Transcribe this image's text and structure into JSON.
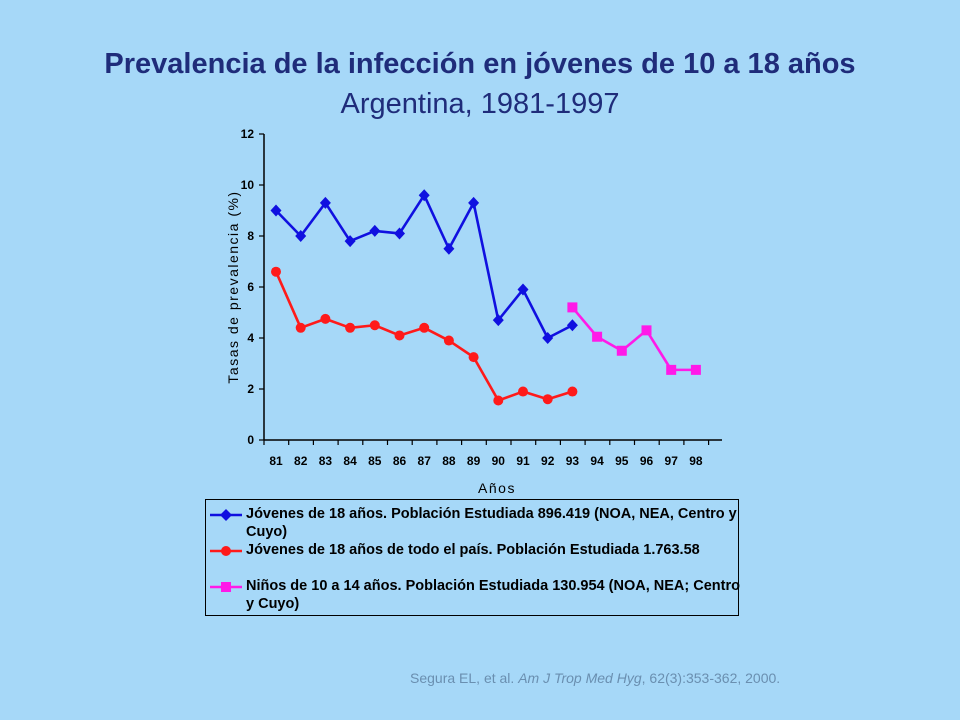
{
  "page": {
    "title": "Prevalencia de la infección en jóvenes de 10 a 18 años",
    "subtitle": "Argentina, 1981-1997",
    "citation": {
      "authors": "Segura EL, et al. ",
      "journal": "Am J Trop Med Hyg",
      "ref": ", 62(3):353-362, 2000."
    }
  },
  "chart_data": {
    "type": "line",
    "title": "Prevalencia de la infección en jóvenes de 10 a 18 años",
    "subtitle": "Argentina, 1981-1997",
    "xlabel": "Años",
    "ylabel": "Tasas de prevalencia (%)",
    "categories": [
      "81",
      "82",
      "83",
      "84",
      "85",
      "86",
      "87",
      "88",
      "89",
      "90",
      "91",
      "92",
      "93",
      "94",
      "95",
      "96",
      "97",
      "98"
    ],
    "ylim": [
      0,
      12
    ],
    "yticks": [
      0,
      2,
      4,
      6,
      8,
      10,
      12
    ],
    "grid": false,
    "legend_position": "bottom",
    "series": [
      {
        "name": "Jóvenes de 18 años. Población Estudiada 896.419 (NOA, NEA, Centro y Cuyo)",
        "color": "#1010e0",
        "marker": "diamond",
        "values": [
          9.0,
          8.0,
          9.3,
          7.8,
          8.2,
          8.1,
          9.6,
          7.5,
          9.3,
          4.7,
          5.9,
          4.0,
          4.5,
          null,
          null,
          null,
          null,
          null
        ]
      },
      {
        "name": "Jóvenes de 18 años de todo el país. Población Estudiada 1.763.58",
        "color": "#ff1a1a",
        "marker": "circle",
        "values": [
          6.6,
          4.4,
          4.75,
          4.4,
          4.5,
          4.1,
          4.4,
          3.9,
          3.25,
          1.55,
          1.9,
          1.6,
          1.9,
          null,
          null,
          null,
          null,
          null
        ]
      },
      {
        "name": "Niños de 10 a 14 años. Población Estudiada 130.954 (NOA, NEA; Centro y Cuyo)",
        "color": "#ff1ae8",
        "marker": "square",
        "values": [
          null,
          null,
          null,
          null,
          null,
          null,
          null,
          null,
          null,
          null,
          null,
          null,
          5.2,
          4.05,
          3.5,
          4.3,
          2.75,
          2.75
        ]
      }
    ]
  }
}
